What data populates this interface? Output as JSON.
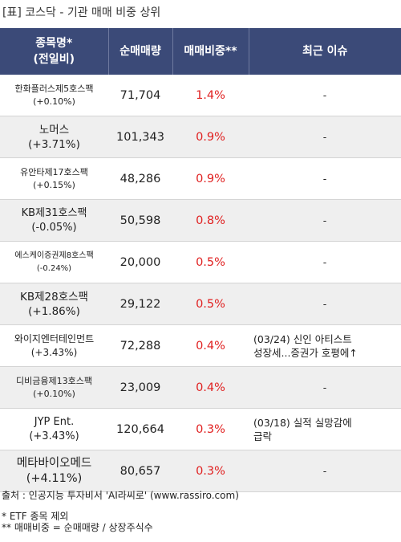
{
  "title": "[표] 코스닥 - 기관 매매 비중 상위",
  "headers": {
    "name_line1": "종목명*",
    "name_line2": "(전일비)",
    "volume": "순매매량",
    "ratio": "매매비중**",
    "issue": "최근 이슈"
  },
  "rows": [
    {
      "name": "한화플러스제5호스팩",
      "change": "(+0.10%)",
      "volume": "71,704",
      "ratio": "1.4%",
      "issue1": "-",
      "issue2": ""
    },
    {
      "name": "노머스",
      "change": "(+3.71%)",
      "volume": "101,343",
      "ratio": "0.9%",
      "issue1": "-",
      "issue2": ""
    },
    {
      "name": "유안타제17호스팩",
      "change": "(+0.15%)",
      "volume": "48,286",
      "ratio": "0.9%",
      "issue1": "-",
      "issue2": ""
    },
    {
      "name": "KB제31호스팩",
      "change": "(-0.05%)",
      "volume": "50,598",
      "ratio": "0.8%",
      "issue1": "-",
      "issue2": ""
    },
    {
      "name": "에스케이증권제8호스팩",
      "change": "(-0.24%)",
      "volume": "20,000",
      "ratio": "0.5%",
      "issue1": "-",
      "issue2": ""
    },
    {
      "name": "KB제28호스팩",
      "change": "(+1.86%)",
      "volume": "29,122",
      "ratio": "0.5%",
      "issue1": "-",
      "issue2": ""
    },
    {
      "name": "와이지엔터테인먼트",
      "change": "(+3.43%)",
      "volume": "72,288",
      "ratio": "0.4%",
      "issue1": "(03/24) 신인 아티스트",
      "issue2": "성장세...증권가 호평에↑"
    },
    {
      "name": "디비금융제13호스팩",
      "change": "(+0.10%)",
      "volume": "23,009",
      "ratio": "0.4%",
      "issue1": "-",
      "issue2": ""
    },
    {
      "name": "JYP Ent.",
      "change": "(+3.43%)",
      "volume": "120,664",
      "ratio": "0.3%",
      "issue1": "(03/18) 실적 실망감에",
      "issue2": "급락"
    },
    {
      "name": "메타바이오메드",
      "change": "(+4.11%)",
      "volume": "80,657",
      "ratio": "0.3%",
      "issue1": "-",
      "issue2": ""
    }
  ],
  "footer": {
    "source": "출처 : 인공지능 투자비서 'AI라씨로' (www.rassiro.com)",
    "note1": "* ETF 종목 제외",
    "note2": "** 매매비중 = 순매매량 / 상장주식수"
  }
}
